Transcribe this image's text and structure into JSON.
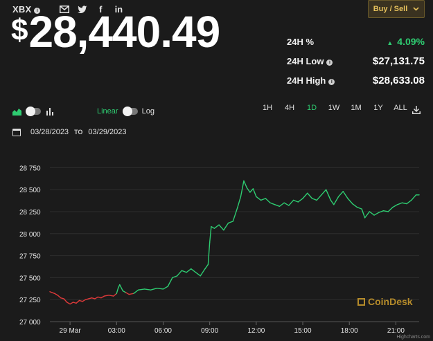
{
  "header": {
    "symbol": "XBX",
    "buy_sell_label": "Buy / Sell",
    "price_currency": "$",
    "price_value": "28,440.49"
  },
  "stats": {
    "change_label": "24H %",
    "change_value": "4.09%",
    "low_label": "24H Low",
    "low_value": "$27,131.75",
    "high_label": "24H High",
    "high_value": "$28,633.08"
  },
  "controls": {
    "linear_label": "Linear",
    "log_label": "Log",
    "ranges": [
      "1H",
      "4H",
      "1D",
      "1W",
      "1M",
      "1Y",
      "ALL"
    ],
    "active_range": "1D"
  },
  "date_range": {
    "from": "03/28/2023",
    "to_label": "TO",
    "to": "03/29/2023"
  },
  "watermark": "CoinDesk",
  "credit": "Highcharts.com",
  "colors": {
    "up": "#2ecc71",
    "down": "#e03a3a",
    "accent": "#e6c15c"
  },
  "chart_data": {
    "type": "line",
    "x_tick_labels": [
      "29 Mar",
      "03:00",
      "06:00",
      "09:00",
      "12:00",
      "15:00",
      "18:00",
      "21:00"
    ],
    "x_ticks_hours": [
      0,
      3,
      6,
      9,
      12,
      15,
      18,
      21
    ],
    "xlim_hours": [
      -1.3,
      22.5
    ],
    "ylim": [
      27000,
      28800
    ],
    "y_ticks": [
      27000,
      27250,
      27500,
      27750,
      28000,
      28250,
      28500,
      28750
    ],
    "y_tick_labels": [
      "27 000",
      "27 250",
      "27 500",
      "27 750",
      "28 000",
      "28 250",
      "28 500",
      "28 750"
    ],
    "series": [
      {
        "points": [
          [
            -1.3,
            27340,
            "r"
          ],
          [
            -1.0,
            27320,
            "r"
          ],
          [
            -0.8,
            27300,
            "r"
          ],
          [
            -0.6,
            27270,
            "r"
          ],
          [
            -0.4,
            27260,
            "r"
          ],
          [
            -0.2,
            27220,
            "r"
          ],
          [
            0.0,
            27200,
            "r"
          ],
          [
            0.2,
            27220,
            "r"
          ],
          [
            0.4,
            27210,
            "r"
          ],
          [
            0.6,
            27240,
            "r"
          ],
          [
            0.8,
            27230,
            "r"
          ],
          [
            1.0,
            27250,
            "r"
          ],
          [
            1.2,
            27260,
            "r"
          ],
          [
            1.4,
            27270,
            "r"
          ],
          [
            1.6,
            27260,
            "r"
          ],
          [
            1.8,
            27280,
            "r"
          ],
          [
            2.0,
            27270,
            "r"
          ],
          [
            2.2,
            27290,
            "r"
          ],
          [
            2.5,
            27300,
            "r"
          ],
          [
            2.8,
            27290,
            "r"
          ],
          [
            3.0,
            27320,
            "r"
          ],
          [
            3.1,
            27380,
            "g"
          ],
          [
            3.2,
            27420,
            "g"
          ],
          [
            3.4,
            27350,
            "g"
          ],
          [
            3.6,
            27330,
            "g"
          ],
          [
            3.8,
            27310,
            "r"
          ],
          [
            4.1,
            27320,
            "r"
          ],
          [
            4.4,
            27360,
            "g"
          ],
          [
            4.8,
            27370,
            "g"
          ],
          [
            5.2,
            27360,
            "g"
          ],
          [
            5.6,
            27380,
            "g"
          ],
          [
            6.0,
            27370,
            "g"
          ],
          [
            6.3,
            27400,
            "g"
          ],
          [
            6.6,
            27500,
            "g"
          ],
          [
            6.9,
            27520,
            "g"
          ],
          [
            7.2,
            27580,
            "g"
          ],
          [
            7.5,
            27560,
            "g"
          ],
          [
            7.8,
            27600,
            "g"
          ],
          [
            8.1,
            27560,
            "g"
          ],
          [
            8.4,
            27520,
            "g"
          ],
          [
            8.7,
            27600,
            "g"
          ],
          [
            8.9,
            27650,
            "g"
          ],
          [
            9.0,
            27900,
            "g"
          ],
          [
            9.1,
            28080,
            "g"
          ],
          [
            9.3,
            28060,
            "g"
          ],
          [
            9.6,
            28100,
            "g"
          ],
          [
            9.9,
            28040,
            "g"
          ],
          [
            10.2,
            28120,
            "g"
          ],
          [
            10.5,
            28140,
            "g"
          ],
          [
            10.8,
            28300,
            "g"
          ],
          [
            11.0,
            28420,
            "g"
          ],
          [
            11.2,
            28600,
            "g"
          ],
          [
            11.4,
            28520,
            "g"
          ],
          [
            11.6,
            28470,
            "g"
          ],
          [
            11.8,
            28510,
            "g"
          ],
          [
            12.0,
            28420,
            "g"
          ],
          [
            12.3,
            28380,
            "g"
          ],
          [
            12.6,
            28400,
            "g"
          ],
          [
            12.9,
            28350,
            "g"
          ],
          [
            13.2,
            28330,
            "g"
          ],
          [
            13.5,
            28310,
            "g"
          ],
          [
            13.8,
            28350,
            "g"
          ],
          [
            14.1,
            28320,
            "g"
          ],
          [
            14.4,
            28380,
            "g"
          ],
          [
            14.7,
            28360,
            "g"
          ],
          [
            15.0,
            28400,
            "g"
          ],
          [
            15.3,
            28460,
            "g"
          ],
          [
            15.6,
            28400,
            "g"
          ],
          [
            15.9,
            28380,
            "g"
          ],
          [
            16.2,
            28440,
            "g"
          ],
          [
            16.5,
            28500,
            "g"
          ],
          [
            16.8,
            28380,
            "g"
          ],
          [
            17.0,
            28330,
            "g"
          ],
          [
            17.3,
            28420,
            "g"
          ],
          [
            17.6,
            28480,
            "g"
          ],
          [
            17.9,
            28400,
            "g"
          ],
          [
            18.2,
            28340,
            "g"
          ],
          [
            18.5,
            28300,
            "g"
          ],
          [
            18.8,
            28280,
            "g"
          ],
          [
            19.0,
            28180,
            "g"
          ],
          [
            19.3,
            28250,
            "g"
          ],
          [
            19.6,
            28210,
            "g"
          ],
          [
            19.9,
            28240,
            "g"
          ],
          [
            20.2,
            28260,
            "g"
          ],
          [
            20.5,
            28250,
            "g"
          ],
          [
            20.8,
            28300,
            "g"
          ],
          [
            21.1,
            28330,
            "g"
          ],
          [
            21.4,
            28350,
            "g"
          ],
          [
            21.7,
            28340,
            "g"
          ],
          [
            22.0,
            28380,
            "g"
          ],
          [
            22.3,
            28440,
            "g"
          ],
          [
            22.5,
            28440,
            "g"
          ]
        ]
      }
    ]
  }
}
